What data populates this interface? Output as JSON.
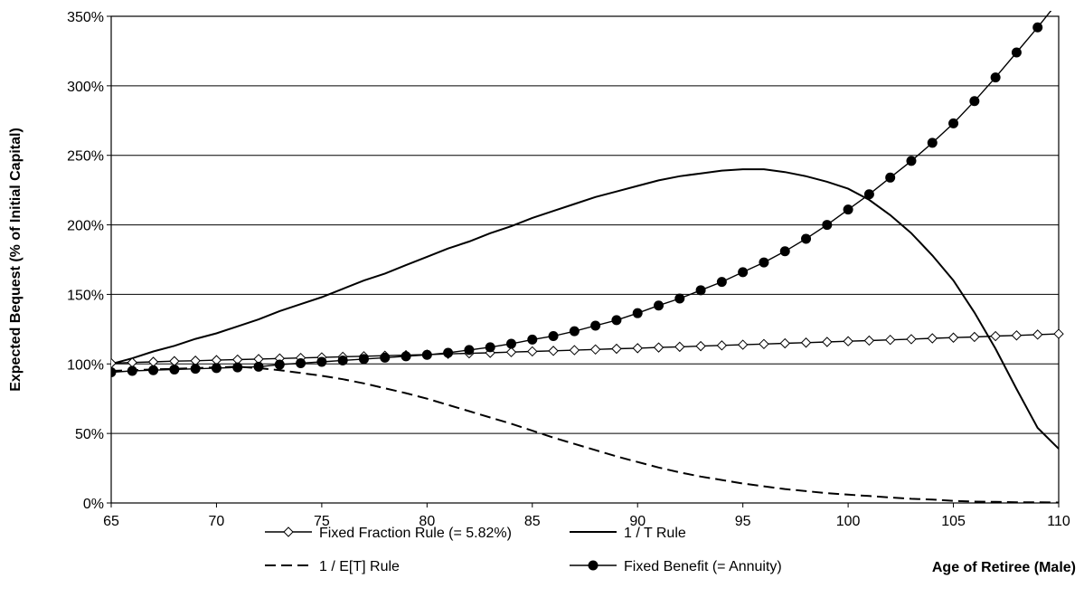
{
  "chart_data": {
    "type": "line",
    "title": "",
    "xlabel": "Age of Retiree (Male)",
    "ylabel": "Expected Bequest (% of Initial Capital)",
    "xlim": [
      65,
      110
    ],
    "ylim": [
      0,
      350
    ],
    "x_ticks": [
      "65",
      "70",
      "75",
      "80",
      "85",
      "90",
      "95",
      "100",
      "105",
      "110"
    ],
    "y_ticks": [
      "0%",
      "50%",
      "100%",
      "150%",
      "200%",
      "250%",
      "300%",
      "350%"
    ],
    "grid": "horizontal",
    "legend_position": "bottom",
    "series": [
      {
        "name": "Fixed Fraction Rule (= 5.82%)",
        "style": "solid-diamond",
        "x": [
          65,
          66,
          67,
          68,
          69,
          70,
          71,
          72,
          73,
          74,
          75,
          76,
          77,
          78,
          79,
          80,
          81,
          82,
          83,
          84,
          85,
          86,
          87,
          88,
          89,
          90,
          91,
          92,
          93,
          94,
          95,
          96,
          97,
          98,
          99,
          100,
          101,
          102,
          103,
          104,
          105,
          106,
          107,
          108,
          109,
          110
        ],
        "y": [
          100.5,
          101,
          101.5,
          102,
          102.3,
          102.7,
          103.1,
          103.5,
          103.9,
          104.3,
          104.7,
          105.1,
          105.5,
          105.9,
          106.3,
          106.7,
          107.2,
          107.6,
          108.0,
          108.5,
          109.0,
          109.4,
          109.9,
          110.4,
          110.9,
          111.3,
          111.8,
          112.3,
          112.8,
          113.3,
          113.8,
          114.3,
          114.8,
          115.3,
          115.8,
          116.3,
          116.8,
          117.3,
          117.8,
          118.4,
          118.9,
          119.4,
          120.0,
          120.5,
          121.1,
          121.6
        ]
      },
      {
        "name": "1 / T Rule",
        "style": "solid",
        "x": [
          65,
          66,
          67,
          68,
          69,
          70,
          71,
          72,
          73,
          74,
          75,
          76,
          77,
          78,
          79,
          80,
          81,
          82,
          83,
          84,
          85,
          86,
          87,
          88,
          89,
          90,
          91,
          92,
          93,
          94,
          95,
          96,
          97,
          98,
          99,
          100,
          101,
          102,
          103,
          104,
          105,
          106,
          107,
          108,
          109,
          110
        ],
        "y": [
          100,
          104,
          109,
          113,
          118,
          122,
          127,
          132,
          138,
          143,
          148,
          154,
          160,
          165,
          171,
          177,
          183,
          188,
          194,
          199,
          205,
          210,
          215,
          220,
          224,
          228,
          232,
          235,
          237,
          239,
          240,
          240,
          238,
          235,
          231,
          226,
          218,
          207,
          194,
          178,
          160,
          137,
          111,
          82,
          54,
          39
        ]
      },
      {
        "name": "1 / E[T] Rule",
        "style": "dashed",
        "x": [
          65,
          66,
          67,
          68,
          69,
          70,
          71,
          72,
          73,
          74,
          75,
          76,
          77,
          78,
          79,
          80,
          81,
          82,
          83,
          84,
          85,
          86,
          87,
          88,
          89,
          90,
          91,
          92,
          93,
          94,
          95,
          96,
          97,
          98,
          99,
          100,
          101,
          102,
          103,
          104,
          105,
          106,
          107,
          108,
          109,
          110
        ],
        "y": [
          95,
          95.5,
          96,
          96.5,
          97,
          97.5,
          98,
          97,
          95.5,
          93.5,
          91.5,
          89,
          86,
          82.5,
          79,
          75,
          70.5,
          66,
          61.5,
          57,
          52,
          47,
          42.5,
          38,
          33.5,
          29.5,
          25.5,
          22,
          19,
          16.5,
          14,
          12,
          10,
          8.5,
          7,
          6,
          5,
          4,
          3,
          2.5,
          1.5,
          1,
          0.8,
          0.5,
          0.5,
          0.3
        ]
      },
      {
        "name": "Fixed Benefit (= Annuity)",
        "style": "solid-circle",
        "x": [
          65,
          66,
          67,
          68,
          69,
          70,
          71,
          72,
          73,
          74,
          75,
          76,
          77,
          78,
          79,
          80,
          81,
          82,
          83,
          84,
          85,
          86,
          87,
          88,
          89,
          90,
          91,
          92,
          93,
          94,
          95,
          96,
          97,
          98,
          99,
          100,
          101,
          102,
          103,
          104,
          105,
          106,
          107,
          108,
          109,
          110
        ],
        "y": [
          94,
          95,
          95.5,
          96,
          96.5,
          97,
          97.5,
          98,
          99.5,
          100.5,
          101.5,
          102.5,
          103.5,
          104.5,
          105.5,
          106.5,
          108,
          110,
          112,
          114.5,
          117.5,
          120,
          123.5,
          127.5,
          131.5,
          136.5,
          142,
          147,
          153,
          159,
          166,
          173,
          181,
          190,
          200,
          211,
          222,
          234,
          246,
          259,
          273,
          289,
          306,
          324,
          342,
          361
        ]
      }
    ]
  }
}
